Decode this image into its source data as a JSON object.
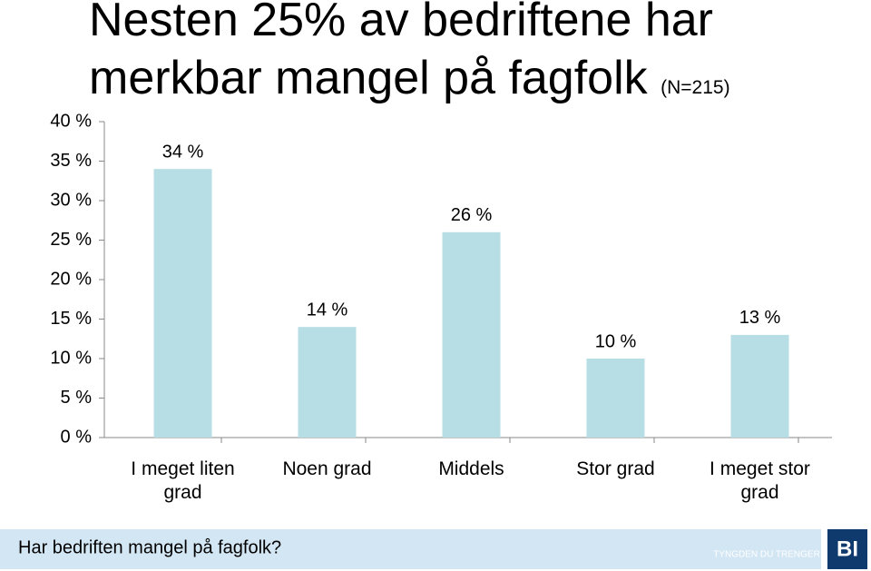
{
  "chart_data": {
    "type": "bar",
    "title": "Nesten 25% av bedriftene har merkbar mangel på fagfolk",
    "subtitle": "(N=215)",
    "categories": [
      "I meget liten grad",
      "Noen grad",
      "Middels",
      "Stor grad",
      "I meget stor grad"
    ],
    "values": [
      34,
      14,
      26,
      10,
      13
    ],
    "value_labels": [
      "34 %",
      "14 %",
      "26 %",
      "10 %",
      "13 %"
    ],
    "color": "#b7dde5",
    "ylim": [
      0,
      40
    ],
    "yticks": [
      {
        "value": 0,
        "label": "0 %"
      },
      {
        "value": 5,
        "label": "5 %"
      },
      {
        "value": 10,
        "label": "10 %"
      },
      {
        "value": 15,
        "label": "15 %"
      },
      {
        "value": 20,
        "label": "20 %"
      },
      {
        "value": 25,
        "label": "25 %"
      },
      {
        "value": 30,
        "label": "30 %"
      },
      {
        "value": 35,
        "label": "35 %"
      },
      {
        "value": 40,
        "label": "40 %"
      }
    ],
    "grid": false
  },
  "footer": {
    "question": "Har bedriften mangel på fagfolk?",
    "slogan": "TYNGDEN DU TRENGER",
    "logo": "BI"
  }
}
